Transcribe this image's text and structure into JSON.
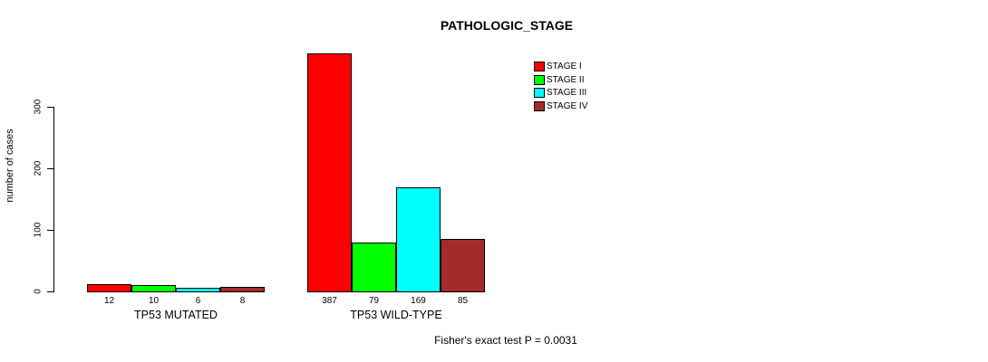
{
  "chart_data": {
    "type": "bar",
    "title": "PATHOLOGIC_STAGE",
    "ylabel": "number of cases",
    "xlabel": "",
    "ylim": [
      0,
      300
    ],
    "yticks": [
      0,
      100,
      200,
      300
    ],
    "grid": false,
    "legend_position": "top-right",
    "legend": [
      {
        "label": "STAGE I",
        "color": "#FF0000"
      },
      {
        "label": "STAGE II",
        "color": "#00FF00"
      },
      {
        "label": "STAGE III",
        "color": "#00FFFF"
      },
      {
        "label": "STAGE IV",
        "color": "#A52A2A"
      }
    ],
    "groups": [
      {
        "label": "TP53 MUTATED",
        "values": [
          12,
          10,
          6,
          8
        ]
      },
      {
        "label": "TP53 WILD-TYPE",
        "values": [
          387,
          79,
          169,
          85
        ]
      }
    ],
    "annotation": "Fisher's exact test P = 0.0031"
  }
}
